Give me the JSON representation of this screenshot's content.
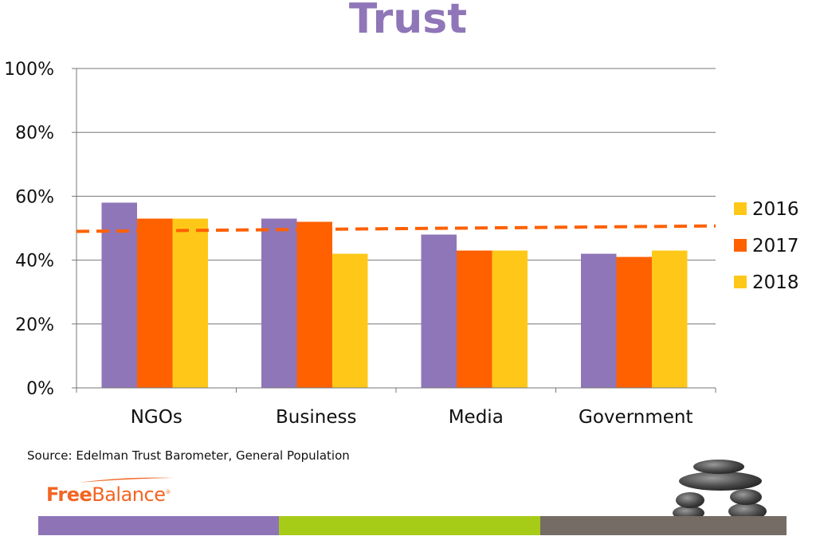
{
  "slide": {
    "title": "Trust",
    "source": "Source: Edelman Trust Barometer, General Population",
    "logo": {
      "part1": "Free",
      "part2": "Balance",
      "mark": "®"
    }
  },
  "colors": {
    "title": "#8f76b8",
    "s2016": "#8f76b8",
    "s2017": "#ff6000",
    "s2018": "#ffc819",
    "legend2016": "#ffc819",
    "trendline": "#ff6000",
    "gridline": "#777777",
    "footer_purple": "#8e74b7",
    "footer_green": "#a7cc18",
    "footer_gray": "#746c65",
    "logo_orange": "#f26522"
  },
  "chart_data": {
    "type": "bar",
    "categories": [
      "NGOs",
      "Business",
      "Media",
      "Government"
    ],
    "series": [
      {
        "name": "2016",
        "values": [
          58,
          53,
          48,
          42
        ]
      },
      {
        "name": "2017",
        "values": [
          53,
          52,
          43,
          41
        ]
      },
      {
        "name": "2018",
        "values": [
          53,
          42,
          43,
          43
        ]
      }
    ],
    "ylim": [
      0,
      100
    ],
    "yticks": [
      0,
      20,
      40,
      60,
      80,
      100
    ],
    "ytick_format": "%",
    "grid": true,
    "legend": "right",
    "trendline": {
      "style": "dashed",
      "start": 49,
      "end": 50.7
    }
  }
}
